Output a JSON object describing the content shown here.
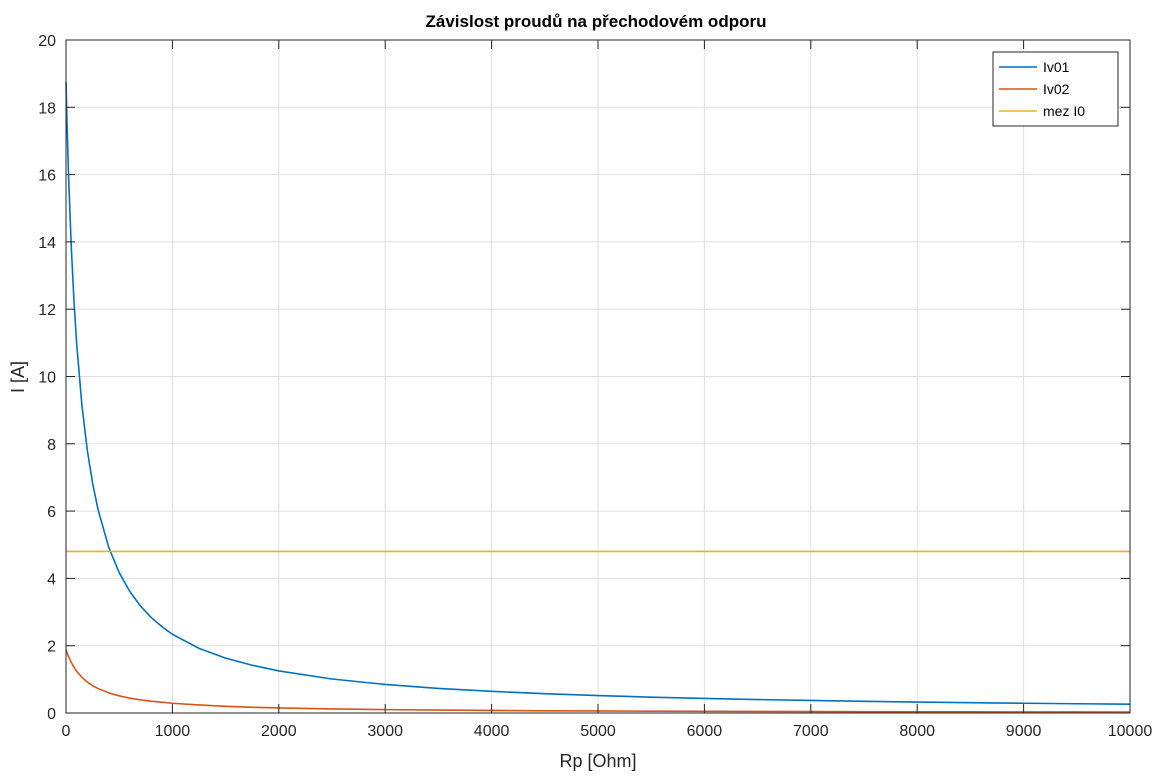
{
  "chart_data": {
    "type": "line",
    "title": "Závislost proudů na přechodovém odporu",
    "xlabel": "Rp [Ohm]",
    "ylabel": "I [A]",
    "xlim": [
      0,
      10000
    ],
    "ylim": [
      0,
      20
    ],
    "xticks": [
      0,
      1000,
      2000,
      3000,
      4000,
      5000,
      6000,
      7000,
      8000,
      9000,
      10000
    ],
    "yticks": [
      0,
      2,
      4,
      6,
      8,
      10,
      12,
      14,
      16,
      18,
      20
    ],
    "grid": true,
    "box": true,
    "legend_position": "top-right",
    "series": [
      {
        "name": "Iv01",
        "color": "#0072BD",
        "x": [
          0,
          10,
          25,
          50,
          75,
          100,
          150,
          200,
          250,
          300,
          400,
          500,
          600,
          700,
          800,
          900,
          1000,
          1250,
          1500,
          1750,
          2000,
          2500,
          3000,
          3500,
          4000,
          4500,
          5000,
          5500,
          6000,
          6500,
          7000,
          7500,
          8000,
          8500,
          9000,
          9500,
          10000
        ],
        "y": [
          18.75,
          17.47,
          15.88,
          13.82,
          12.24,
          10.98,
          9.13,
          7.81,
          6.83,
          6.06,
          4.94,
          4.17,
          3.61,
          3.18,
          2.84,
          2.57,
          2.34,
          1.92,
          1.63,
          1.42,
          1.25,
          1.01,
          0.848,
          0.731,
          0.643,
          0.573,
          0.517,
          0.471,
          0.433,
          0.4,
          0.372,
          0.348,
          0.326,
          0.307,
          0.29,
          0.275,
          0.262
        ]
      },
      {
        "name": "Iv02",
        "color": "#D95319",
        "x": [
          0,
          10,
          25,
          50,
          75,
          100,
          150,
          200,
          250,
          300,
          400,
          500,
          600,
          700,
          800,
          900,
          1000,
          1250,
          1500,
          1750,
          2000,
          2500,
          3000,
          3500,
          4000,
          4500,
          5000,
          5500,
          6000,
          6500,
          7000,
          7500,
          8000,
          8500,
          9000,
          9500,
          10000
        ],
        "y": [
          1.88,
          1.79,
          1.67,
          1.5,
          1.36,
          1.24,
          1.06,
          0.92,
          0.81,
          0.73,
          0.6,
          0.51,
          0.44,
          0.39,
          0.35,
          0.32,
          0.29,
          0.24,
          0.2,
          0.17,
          0.15,
          0.12,
          0.1,
          0.086,
          0.075,
          0.066,
          0.06,
          0.054,
          0.05,
          0.046,
          0.043,
          0.04,
          0.037,
          0.035,
          0.033,
          0.032,
          0.03
        ]
      },
      {
        "name": "mez I0",
        "color": "#EDB120",
        "x": [
          0,
          10000
        ],
        "y": [
          4.8,
          4.8
        ]
      }
    ]
  }
}
